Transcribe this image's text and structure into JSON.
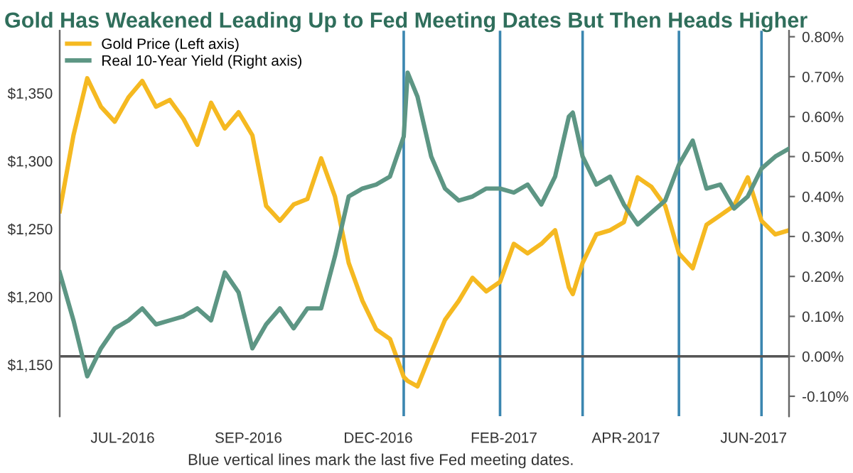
{
  "chart_data": {
    "type": "line",
    "title": "Gold Has Weakened Leading Up to Fed Meeting Dates But Then Heads Higher",
    "annotations": [
      "Blue vertical lines mark the last five Fed meeting dates."
    ],
    "x": [
      "2016-06-22",
      "2016-06-29",
      "2016-07-06",
      "2016-07-13",
      "2016-07-20",
      "2016-07-27",
      "2016-08-03",
      "2016-08-10",
      "2016-08-17",
      "2016-08-24",
      "2016-08-31",
      "2016-09-07",
      "2016-09-14",
      "2016-09-21",
      "2016-09-28",
      "2016-10-05",
      "2016-10-12",
      "2016-10-19",
      "2016-10-26",
      "2016-11-02",
      "2016-11-09",
      "2016-11-16",
      "2016-11-23",
      "2016-11-30",
      "2016-12-07",
      "2016-12-14",
      "2016-12-16",
      "2016-12-21",
      "2016-12-28",
      "2017-01-04",
      "2017-01-11",
      "2017-01-18",
      "2017-01-25",
      "2017-02-01",
      "2017-02-08",
      "2017-02-15",
      "2017-02-22",
      "2017-03-01",
      "2017-03-08",
      "2017-03-10",
      "2017-03-15",
      "2017-03-22",
      "2017-03-29",
      "2017-04-05",
      "2017-04-12",
      "2017-04-19",
      "2017-04-26",
      "2017-05-03",
      "2017-05-10",
      "2017-05-17",
      "2017-05-24",
      "2017-05-31",
      "2017-06-07",
      "2017-06-14",
      "2017-06-21",
      "2017-06-28"
    ],
    "series": [
      {
        "name": "Gold Price (Left axis)",
        "color": "#f5b921",
        "values": [
          1263,
          1319,
          1361,
          1340,
          1329,
          1347,
          1359,
          1340,
          1345,
          1331,
          1312,
          1343,
          1324,
          1336,
          1319,
          1267,
          1256,
          1268,
          1272,
          1302,
          1274,
          1225,
          1197,
          1176,
          1169,
          1141,
          1138,
          1134,
          1159,
          1183,
          1197,
          1214,
          1204,
          1211,
          1239,
          1232,
          1239,
          1249,
          1207,
          1202,
          1225,
          1246,
          1249,
          1255,
          1288,
          1281,
          1267,
          1232,
          1221,
          1253,
          1260,
          1267,
          1288,
          1256,
          1246,
          1249
        ]
      },
      {
        "name": "Real 10-Year Yield (Right axis)",
        "color": "#5d9684",
        "axis": "y2",
        "values": [
          0.21,
          0.09,
          -0.05,
          0.02,
          0.07,
          0.09,
          0.12,
          0.08,
          0.09,
          0.1,
          0.12,
          0.09,
          0.21,
          0.16,
          0.02,
          0.08,
          0.12,
          0.07,
          0.12,
          0.12,
          0.25,
          0.4,
          0.42,
          0.43,
          0.45,
          0.55,
          0.71,
          0.65,
          0.5,
          0.42,
          0.39,
          0.4,
          0.42,
          0.42,
          0.41,
          0.43,
          0.38,
          0.45,
          0.6,
          0.61,
          0.5,
          0.43,
          0.45,
          0.38,
          0.33,
          0.36,
          0.39,
          0.48,
          0.54,
          0.42,
          0.43,
          0.37,
          0.4,
          0.47,
          0.5,
          0.52
        ]
      }
    ],
    "xlim": [
      "2016-06-22",
      "2017-06-28"
    ],
    "xticks": [
      {
        "value": "2016-07-24",
        "label": "JUL-2016"
      },
      {
        "value": "2016-09-26",
        "label": "SEP-2016"
      },
      {
        "value": "2016-12-01",
        "label": "DEC-2016"
      },
      {
        "value": "2017-02-03",
        "label": "FEB-2017"
      },
      {
        "value": "2017-04-06",
        "label": "APR-2017"
      },
      {
        "value": "2017-06-10",
        "label": "JUN-2017"
      }
    ],
    "ylim": [
      1112,
      1396
    ],
    "yticks": [
      {
        "value": 1150,
        "label": "$1,150"
      },
      {
        "value": 1200,
        "label": "$1,200"
      },
      {
        "value": 1250,
        "label": "$1,250"
      },
      {
        "value": 1300,
        "label": "$1,300"
      },
      {
        "value": 1350,
        "label": "$1,350"
      }
    ],
    "y2lim": [
      -0.15,
      0.815
    ],
    "y2ticks": [
      {
        "value": -0.1,
        "label": "-0.10%"
      },
      {
        "value": 0,
        "label": "0.00%"
      },
      {
        "value": 0.1,
        "label": "0.10%"
      },
      {
        "value": 0.2,
        "label": "0.20%"
      },
      {
        "value": 0.3,
        "label": "0.30%"
      },
      {
        "value": 0.4,
        "label": "0.40%"
      },
      {
        "value": 0.5,
        "label": "0.50%"
      },
      {
        "value": 0.6,
        "label": "0.60%"
      },
      {
        "value": 0.7,
        "label": "0.70%"
      },
      {
        "value": 0.8,
        "label": "0.80%"
      }
    ],
    "ref_lines": [
      {
        "axis": "x",
        "value": "2016-12-14",
        "color": "#3b86b0"
      },
      {
        "axis": "x",
        "value": "2017-02-01",
        "color": "#3b86b0"
      },
      {
        "axis": "x",
        "value": "2017-03-15",
        "color": "#3b86b0"
      },
      {
        "axis": "x",
        "value": "2017-05-03",
        "color": "#3b86b0"
      },
      {
        "axis": "x",
        "value": "2017-06-14",
        "color": "#3b86b0"
      },
      {
        "axis": "y2",
        "value": 0,
        "color": "#555555"
      }
    ],
    "legend": "top left",
    "grid": false,
    "marker": "none",
    "line_style": "solid"
  }
}
